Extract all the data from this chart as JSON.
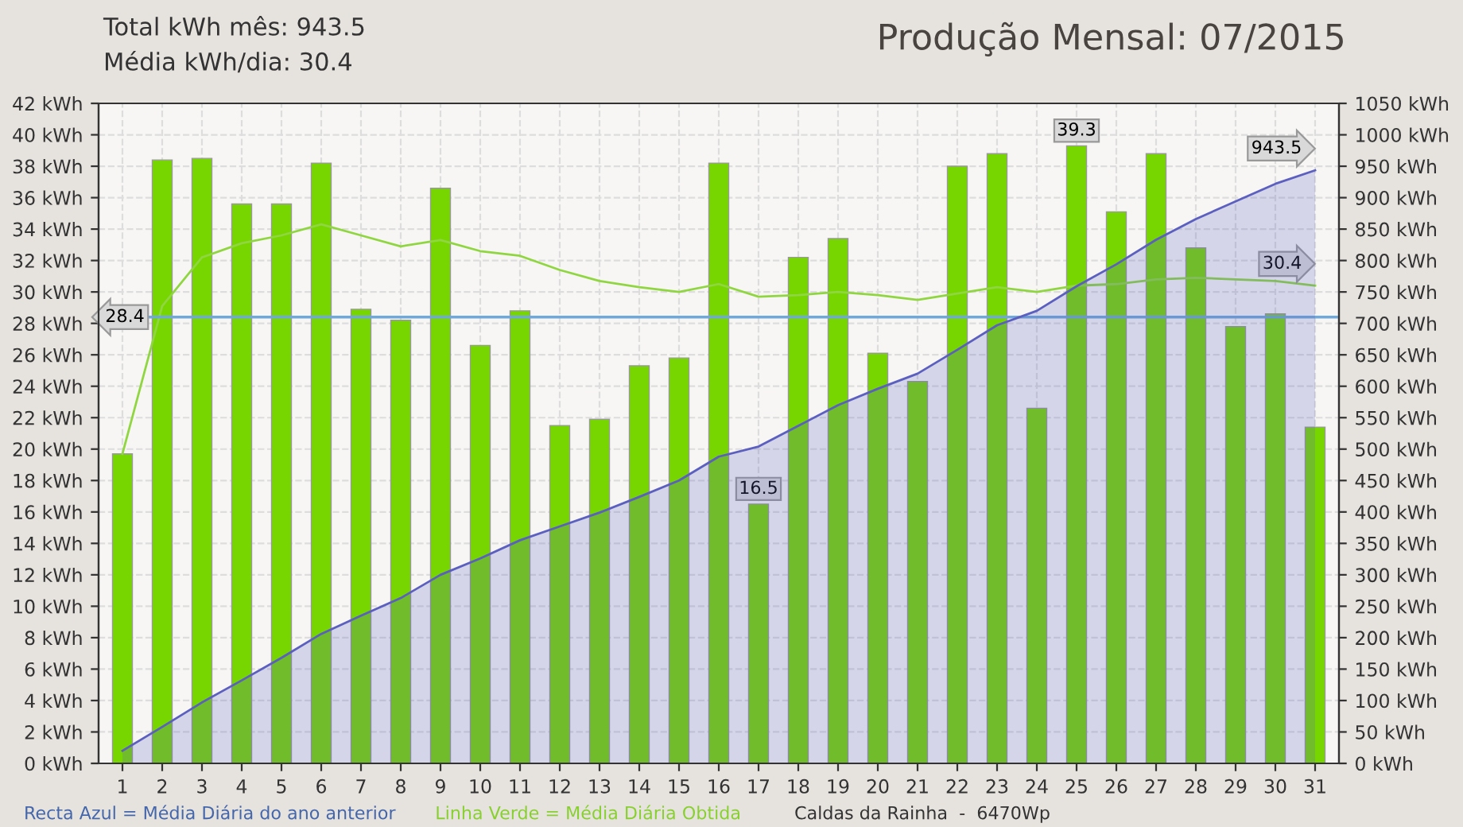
{
  "chart_data": {
    "type": "bar",
    "title": "Produção Mensal: 07/2015",
    "categories": [
      "1",
      "2",
      "3",
      "4",
      "5",
      "6",
      "7",
      "8",
      "9",
      "10",
      "11",
      "12",
      "13",
      "14",
      "15",
      "16",
      "17",
      "18",
      "19",
      "20",
      "21",
      "22",
      "23",
      "24",
      "25",
      "26",
      "27",
      "28",
      "29",
      "30",
      "31"
    ],
    "series": [
      {
        "color": "#77d600",
        "values": [
          19.7,
          38.4,
          38.5,
          35.6,
          35.6,
          38.2,
          28.9,
          28.2,
          36.6,
          26.6,
          28.8,
          21.5,
          21.9,
          25.3,
          25.8,
          38.2,
          16.5,
          32.2,
          33.4,
          26.1,
          24.3,
          38.0,
          38.8,
          22.6,
          39.3,
          35.1,
          38.8,
          32.8,
          27.8,
          28.6,
          21.4
        ],
        "value_labels": [
          null,
          null,
          null,
          null,
          null,
          null,
          null,
          null,
          null,
          null,
          null,
          null,
          null,
          null,
          null,
          null,
          "16.5",
          null,
          null,
          null,
          null,
          null,
          null,
          null,
          "39.3",
          null,
          null,
          null,
          null,
          null,
          null
        ]
      },
      {
        "type": "line",
        "color": "#8fd640",
        "values": [
          19.7,
          29.1,
          32.2,
          33.1,
          33.6,
          34.3,
          33.6,
          32.9,
          33.3,
          32.6,
          32.3,
          31.4,
          30.7,
          30.3,
          30.0,
          30.5,
          29.7,
          29.8,
          30.0,
          29.8,
          29.5,
          29.9,
          30.3,
          30.0,
          30.4,
          30.5,
          30.8,
          30.9,
          30.8,
          30.7,
          30.4
        ],
        "value_labels": [
          null,
          null,
          null,
          null,
          null,
          null,
          null,
          null,
          null,
          null,
          null,
          null,
          null,
          null,
          null,
          null,
          null,
          null,
          null,
          null,
          null,
          null,
          null,
          null,
          null,
          null,
          null,
          null,
          null,
          null,
          "30.4"
        ]
      },
      {
        "type": "area",
        "axis": "y2",
        "color": "#5b5fbf",
        "values": [
          20,
          58,
          97,
          132,
          168,
          206,
          235,
          263,
          300,
          326,
          355,
          377,
          399,
          424,
          450,
          488,
          504,
          537,
          570,
          596,
          620,
          658,
          697,
          720,
          759,
          794,
          833,
          866,
          894,
          922,
          943.5
        ],
        "value_labels": [
          null,
          null,
          null,
          null,
          null,
          null,
          null,
          null,
          null,
          null,
          null,
          null,
          null,
          null,
          null,
          null,
          null,
          null,
          null,
          null,
          null,
          null,
          null,
          null,
          null,
          null,
          null,
          null,
          null,
          null,
          "943.5"
        ]
      }
    ],
    "ylim": [
      0,
      42
    ],
    "yticks": [
      {
        "value": 0,
        "label": "0 kWh"
      },
      {
        "value": 2,
        "label": "2 kWh"
      },
      {
        "value": 4,
        "label": "4 kWh"
      },
      {
        "value": 6,
        "label": "6 kWh"
      },
      {
        "value": 8,
        "label": "8 kWh"
      },
      {
        "value": 10,
        "label": "10 kWh"
      },
      {
        "value": 12,
        "label": "12 kWh"
      },
      {
        "value": 14,
        "label": "14 kWh"
      },
      {
        "value": 16,
        "label": "16 kWh"
      },
      {
        "value": 18,
        "label": "18 kWh"
      },
      {
        "value": 20,
        "label": "20 kWh"
      },
      {
        "value": 22,
        "label": "22 kWh"
      },
      {
        "value": 24,
        "label": "24 kWh"
      },
      {
        "value": 26,
        "label": "26 kWh"
      },
      {
        "value": 28,
        "label": "28 kWh"
      },
      {
        "value": 30,
        "label": "30 kWh"
      },
      {
        "value": 32,
        "label": "32 kWh"
      },
      {
        "value": 34,
        "label": "34 kWh"
      },
      {
        "value": 36,
        "label": "36 kWh"
      },
      {
        "value": 38,
        "label": "38 kWh"
      },
      {
        "value": 40,
        "label": "40 kWh"
      },
      {
        "value": 42,
        "label": "42 kWh"
      }
    ],
    "y2lim": [
      0,
      1050
    ],
    "y2ticks": [
      {
        "value": 0,
        "label": "0 kWh"
      },
      {
        "value": 50,
        "label": "50 kWh"
      },
      {
        "value": 100,
        "label": "100 kWh"
      },
      {
        "value": 150,
        "label": "150 kWh"
      },
      {
        "value": 200,
        "label": "200 kWh"
      },
      {
        "value": 250,
        "label": "250 kWh"
      },
      {
        "value": 300,
        "label": "300 kWh"
      },
      {
        "value": 350,
        "label": "350 kWh"
      },
      {
        "value": 400,
        "label": "400 kWh"
      },
      {
        "value": 450,
        "label": "450 kWh"
      },
      {
        "value": 500,
        "label": "500 kWh"
      },
      {
        "value": 550,
        "label": "550 kWh"
      },
      {
        "value": 600,
        "label": "600 kWh"
      },
      {
        "value": 650,
        "label": "650 kWh"
      },
      {
        "value": 700,
        "label": "700 kWh"
      },
      {
        "value": 750,
        "label": "750 kWh"
      },
      {
        "value": 800,
        "label": "800 kWh"
      },
      {
        "value": 850,
        "label": "850 kWh"
      },
      {
        "value": 900,
        "label": "900 kWh"
      },
      {
        "value": 950,
        "label": "950 kWh"
      },
      {
        "value": 1000,
        "label": "1000 kWh"
      },
      {
        "value": 1050,
        "label": "1050 kWh"
      }
    ],
    "ref_lines": [
      {
        "axis": "y",
        "value": 28.4,
        "label": "28.4",
        "color": "#6fa8dc"
      }
    ],
    "grid": true,
    "legend": false,
    "marker": "none",
    "line_style": "solid",
    "annotations": [
      "Total kWh mês: 943.5",
      "Média kWh/dia: 30.4",
      "Recta Azul = Média Diária do ano anterior",
      "Linha Verde = Média Diária Obtida",
      "Caldas da Rainha  -  6470Wp"
    ]
  }
}
